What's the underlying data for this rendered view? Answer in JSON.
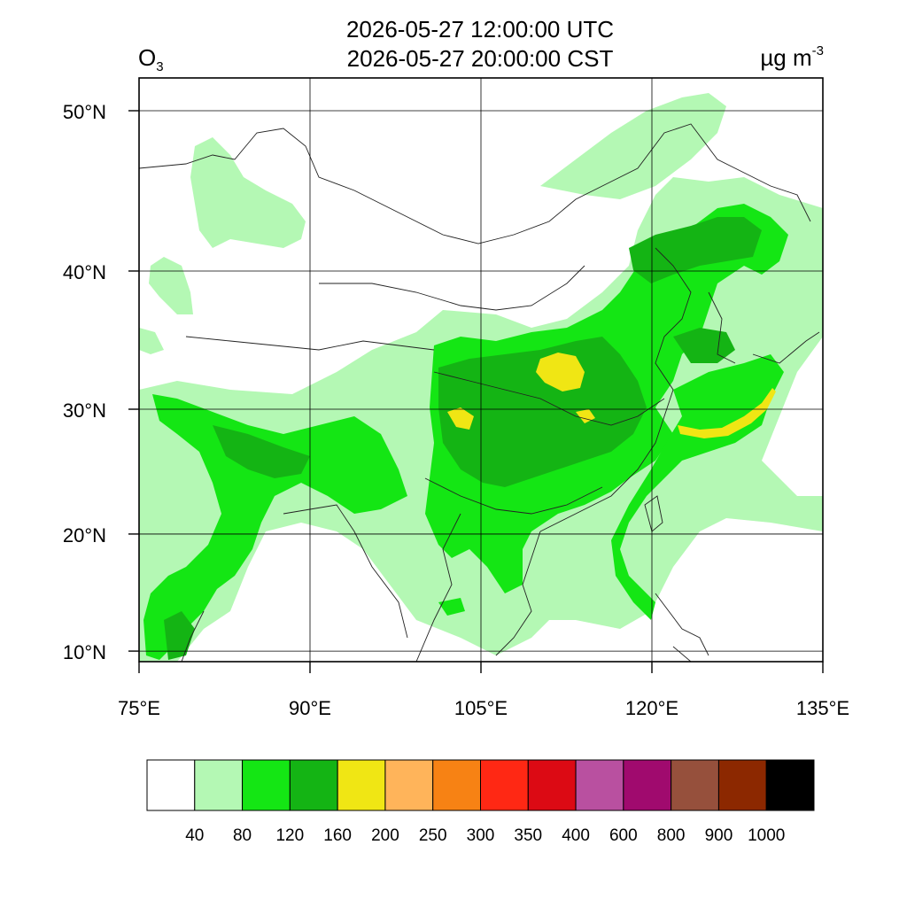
{
  "header": {
    "title_utc": "2026-05-27 12:00:00 UTC",
    "title_local": "2026-05-27 20:00:00 CST",
    "variable_main": "O",
    "variable_sub": "3",
    "unit_main": "µg m",
    "unit_sup": "-3"
  },
  "axes": {
    "lat_ticks": [
      {
        "value": 50,
        "label": "50°N"
      },
      {
        "value": 40,
        "label": "40°N"
      },
      {
        "value": 30,
        "label": "30°N"
      },
      {
        "value": 20,
        "label": "20°N"
      },
      {
        "value": 10,
        "label": "10°N"
      }
    ],
    "lon_ticks": [
      {
        "value": 75,
        "label": "75°E"
      },
      {
        "value": 90,
        "label": "90°E"
      },
      {
        "value": 105,
        "label": "105°E"
      },
      {
        "value": 120,
        "label": "120°E"
      },
      {
        "value": 135,
        "label": "135°E"
      }
    ],
    "lon_range": [
      75,
      135
    ],
    "lat_range": [
      9,
      52
    ],
    "grid": true
  },
  "colorbar": {
    "colors": [
      "#ffffff",
      "#b4f8b4",
      "#14e614",
      "#14b414",
      "#f0e614",
      "#ffb45a",
      "#f78214",
      "#ff2814",
      "#dc0a14",
      "#b950a0",
      "#a00a6e",
      "#96503c",
      "#8c2800",
      "#000000"
    ],
    "labels": [
      "40",
      "80",
      "120",
      "160",
      "200",
      "250",
      "300",
      "350",
      "400",
      "600",
      "800",
      "900",
      "1000"
    ]
  },
  "map_colors": {
    "lvl1": "#b4f8b4",
    "lvl2": "#14e614",
    "lvl3": "#14b414",
    "lvl4": "#f0e614",
    "border": "#222222",
    "grid": "#000000"
  }
}
